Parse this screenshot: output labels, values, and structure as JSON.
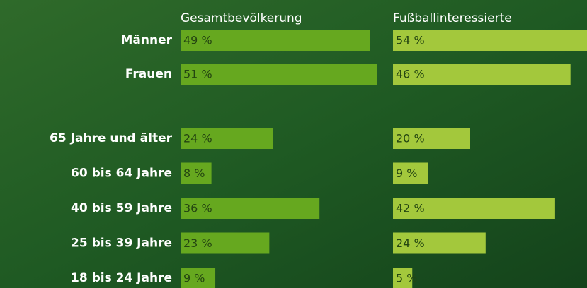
{
  "chart_data": {
    "type": "bar",
    "categories": [
      "Männer",
      "Frauen",
      "65 Jahre und älter",
      "60 bis 64 Jahre",
      "40 bis 59 Jahre",
      "25 bis 39 Jahre",
      "18 bis 24 Jahre"
    ],
    "series": [
      {
        "name": "Gesamtbevölkerung",
        "color": "#66a81f",
        "values": [
          49,
          51,
          24,
          8,
          36,
          23,
          9
        ],
        "value_labels": [
          "49 %",
          "51 %",
          "24 %",
          "8 %",
          "36 %",
          "23 %",
          "9 %"
        ]
      },
      {
        "name": "Fußballinteressierte",
        "color": "#a3c83c",
        "values": [
          54,
          46,
          20,
          9,
          42,
          24,
          5
        ],
        "value_labels": [
          "54 %",
          "46 %",
          "20 %",
          "9 %",
          "42 %",
          "24 %",
          "5 %"
        ]
      }
    ]
  }
}
